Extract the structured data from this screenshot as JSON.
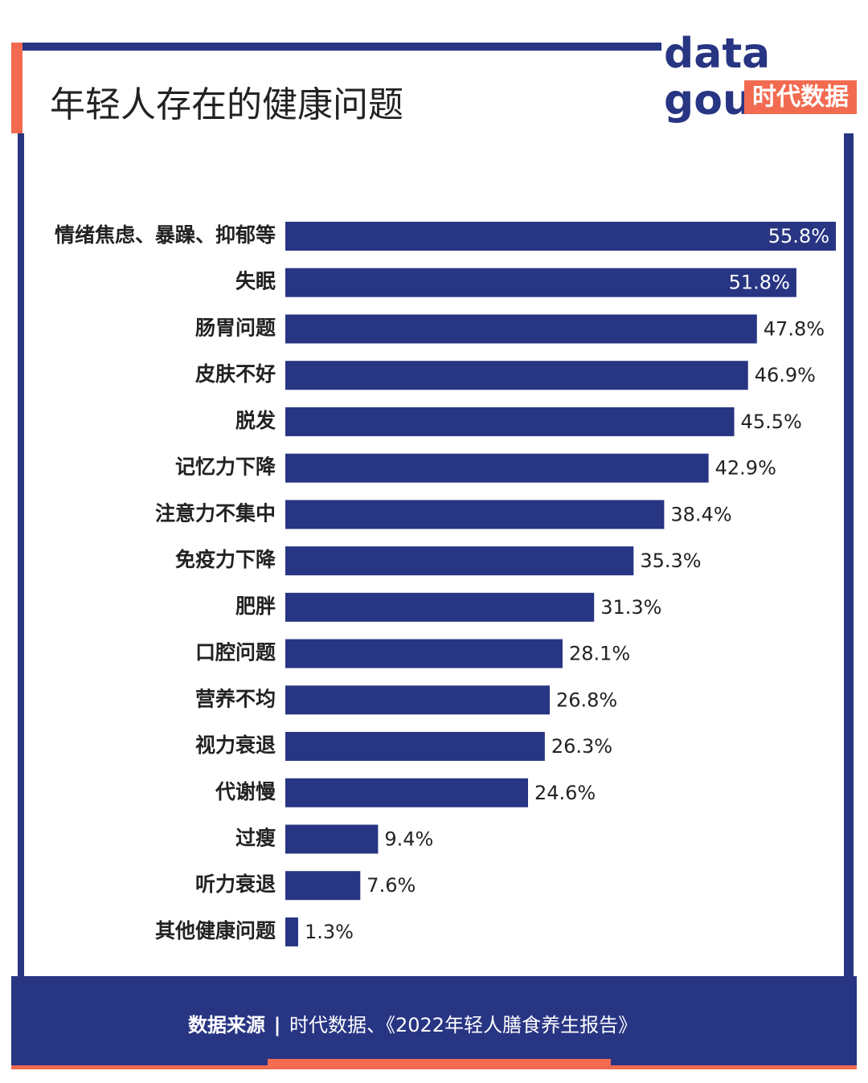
{
  "chart_data": {
    "type": "bar",
    "orientation": "horizontal",
    "title": "年轻人存在的健康问题",
    "categories": [
      "情绪焦虑、暴躁、抑郁等",
      "失眠",
      "肠胃问题",
      "皮肤不好",
      "脱发",
      "记忆力下降",
      "注意力不集中",
      "免疫力下降",
      "肥胖",
      "口腔问题",
      "营养不均",
      "视力衰退",
      "代谢慢",
      "过瘦",
      "听力衰退",
      "其他健康问题"
    ],
    "values": [
      55.8,
      51.8,
      47.8,
      46.9,
      45.5,
      42.9,
      38.4,
      35.3,
      31.3,
      28.1,
      26.8,
      26.3,
      24.6,
      9.4,
      7.6,
      1.3
    ],
    "value_labels": [
      "55.8%",
      "51.8%",
      "47.8%",
      "46.9%",
      "45.5%",
      "42.9%",
      "38.4%",
      "35.3%",
      "31.3%",
      "28.1%",
      "26.8%",
      "26.3%",
      "24.6%",
      "9.4%",
      "7.6%",
      "1.3%"
    ],
    "color": "#283583",
    "logo": {
      "top": "data",
      "bottom": "gou",
      "brand": "时代数据"
    },
    "source": {
      "label": "数据来源",
      "separator": "|",
      "text": "时代数据、《2022年轻人膳食养生报告》"
    }
  }
}
